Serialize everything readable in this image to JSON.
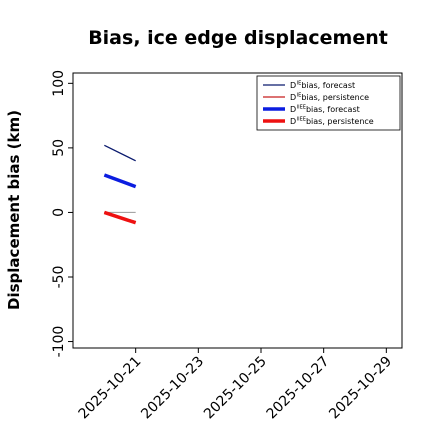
{
  "chart_data": {
    "type": "line",
    "title": "Bias, ice edge displacement",
    "ylabel": "Displacement bias (km)",
    "xlabel": "",
    "ylim": [
      -105,
      108
    ],
    "xlim": [
      "2025-10-19 00:00",
      "2025-10-29 12:00"
    ],
    "y_ticks": [
      100,
      50,
      0,
      -50,
      -100
    ],
    "x_ticks": [
      "2025-10-21",
      "2025-10-23",
      "2025-10-25",
      "2025-10-27",
      "2025-10-29"
    ],
    "highlight_tick": "2025-10-21",
    "highlight_color": "#228B22",
    "grid": false,
    "legend_placement": "top-right",
    "zero_line": true,
    "series": [
      {
        "legend_main": "D",
        "legend_sup": "IE",
        "legend_tail": " bias, forecast",
        "color": "#0a1a6e",
        "width": "thin",
        "x": [
          "2025-10-20",
          "2025-10-21"
        ],
        "y": [
          52,
          40
        ]
      },
      {
        "legend_main": "D",
        "legend_sup": "IE",
        "legend_tail": " bias, persistence",
        "color": "#c81e1e",
        "width": "thin",
        "x": [
          "2025-10-20",
          "2025-10-21"
        ],
        "y": [
          0,
          -7
        ]
      },
      {
        "legend_main": "D",
        "legend_sup": "IIEE",
        "legend_tail": " bias, forecast",
        "color": "#0b1de0",
        "width": "thick",
        "x": [
          "2025-10-20",
          "2025-10-21"
        ],
        "y": [
          29,
          20
        ]
      },
      {
        "legend_main": "D",
        "legend_sup": "IIEE",
        "legend_tail": " bias, persistence",
        "color": "#ee1111",
        "width": "thick",
        "x": [
          "2025-10-20",
          "2025-10-21"
        ],
        "y": [
          0,
          -8
        ]
      }
    ]
  }
}
